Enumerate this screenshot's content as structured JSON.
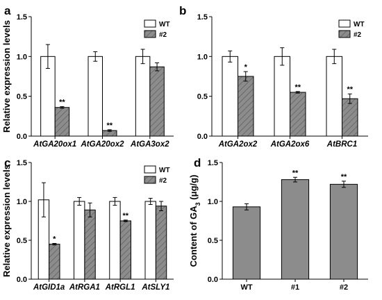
{
  "colors": {
    "wt_fill": "#ffffff",
    "mutant_fill": "#8c8c8c",
    "hatch": "#555555",
    "bar_edge": "#000000"
  },
  "chart_data": [
    {
      "panel": "a",
      "type": "bar",
      "ylabel": "Relative expression levels",
      "ylim": [
        0,
        1.5
      ],
      "yticks": [
        "0.0",
        "0.5",
        "1.0",
        "1.5"
      ],
      "categories": [
        "AtGA20ox1",
        "AtGA20ox2",
        "AtGA3ox2"
      ],
      "legend": {
        "position": "top-right",
        "entries": [
          "WT",
          "#2"
        ]
      },
      "series": [
        {
          "name": "WT",
          "values": [
            1.0,
            1.0,
            1.0
          ],
          "errors": [
            0.15,
            0.06,
            0.09
          ],
          "sig": [
            "",
            "",
            ""
          ]
        },
        {
          "name": "#2",
          "values": [
            0.36,
            0.07,
            0.87
          ],
          "errors": [
            0.01,
            0.01,
            0.05
          ],
          "sig": [
            "**",
            "**",
            ""
          ]
        }
      ]
    },
    {
      "panel": "b",
      "type": "bar",
      "ylabel": "",
      "ylim": [
        0,
        1.5
      ],
      "yticks": [
        "0.0",
        "0.5",
        "1.0",
        "1.5"
      ],
      "categories": [
        "AtGA2ox2",
        "AtGA2ox6",
        "AtBRC1"
      ],
      "legend": {
        "position": "top-right",
        "entries": [
          "WT",
          "#2"
        ]
      },
      "series": [
        {
          "name": "WT",
          "values": [
            1.0,
            1.0,
            1.0
          ],
          "errors": [
            0.07,
            0.11,
            0.09
          ],
          "sig": [
            "",
            "",
            ""
          ]
        },
        {
          "name": "#2",
          "values": [
            0.75,
            0.55,
            0.47
          ],
          "errors": [
            0.06,
            0.01,
            0.06
          ],
          "sig": [
            "*",
            "**",
            "**"
          ]
        }
      ]
    },
    {
      "panel": "c",
      "type": "bar",
      "ylabel": "Relative expression levels",
      "ylim": [
        0,
        1.5
      ],
      "yticks": [
        "0.0",
        "0.5",
        "1.0",
        "1.5"
      ],
      "categories": [
        "AtGID1a",
        "AtRGA1",
        "AtRGL1",
        "AtSLY1"
      ],
      "legend": {
        "position": "top-right",
        "entries": [
          "WT",
          "#2"
        ]
      },
      "series": [
        {
          "name": "WT",
          "values": [
            1.02,
            1.0,
            1.0,
            1.0
          ],
          "errors": [
            0.22,
            0.05,
            0.05,
            0.04
          ],
          "sig": [
            "",
            "",
            "",
            ""
          ]
        },
        {
          "name": "#2",
          "values": [
            0.45,
            0.89,
            0.75,
            0.94
          ],
          "errors": [
            0.01,
            0.09,
            0.01,
            0.06
          ],
          "sig": [
            "*",
            "",
            "**",
            ""
          ]
        }
      ]
    },
    {
      "panel": "d",
      "type": "bar",
      "ylabel_prefix": "Content of GA",
      "ylabel_sub": "3",
      "ylabel_suffix": " (μg/g)",
      "ylim": [
        0,
        1.5
      ],
      "yticks": [
        "0.0",
        "0.5",
        "1.0",
        "1.5"
      ],
      "categories": [
        "WT",
        "#1",
        "#2"
      ],
      "series": [
        {
          "name": "",
          "values": [
            0.93,
            1.28,
            1.22
          ],
          "errors": [
            0.04,
            0.03,
            0.04
          ],
          "sig": [
            "",
            "**",
            "**"
          ]
        }
      ]
    }
  ]
}
